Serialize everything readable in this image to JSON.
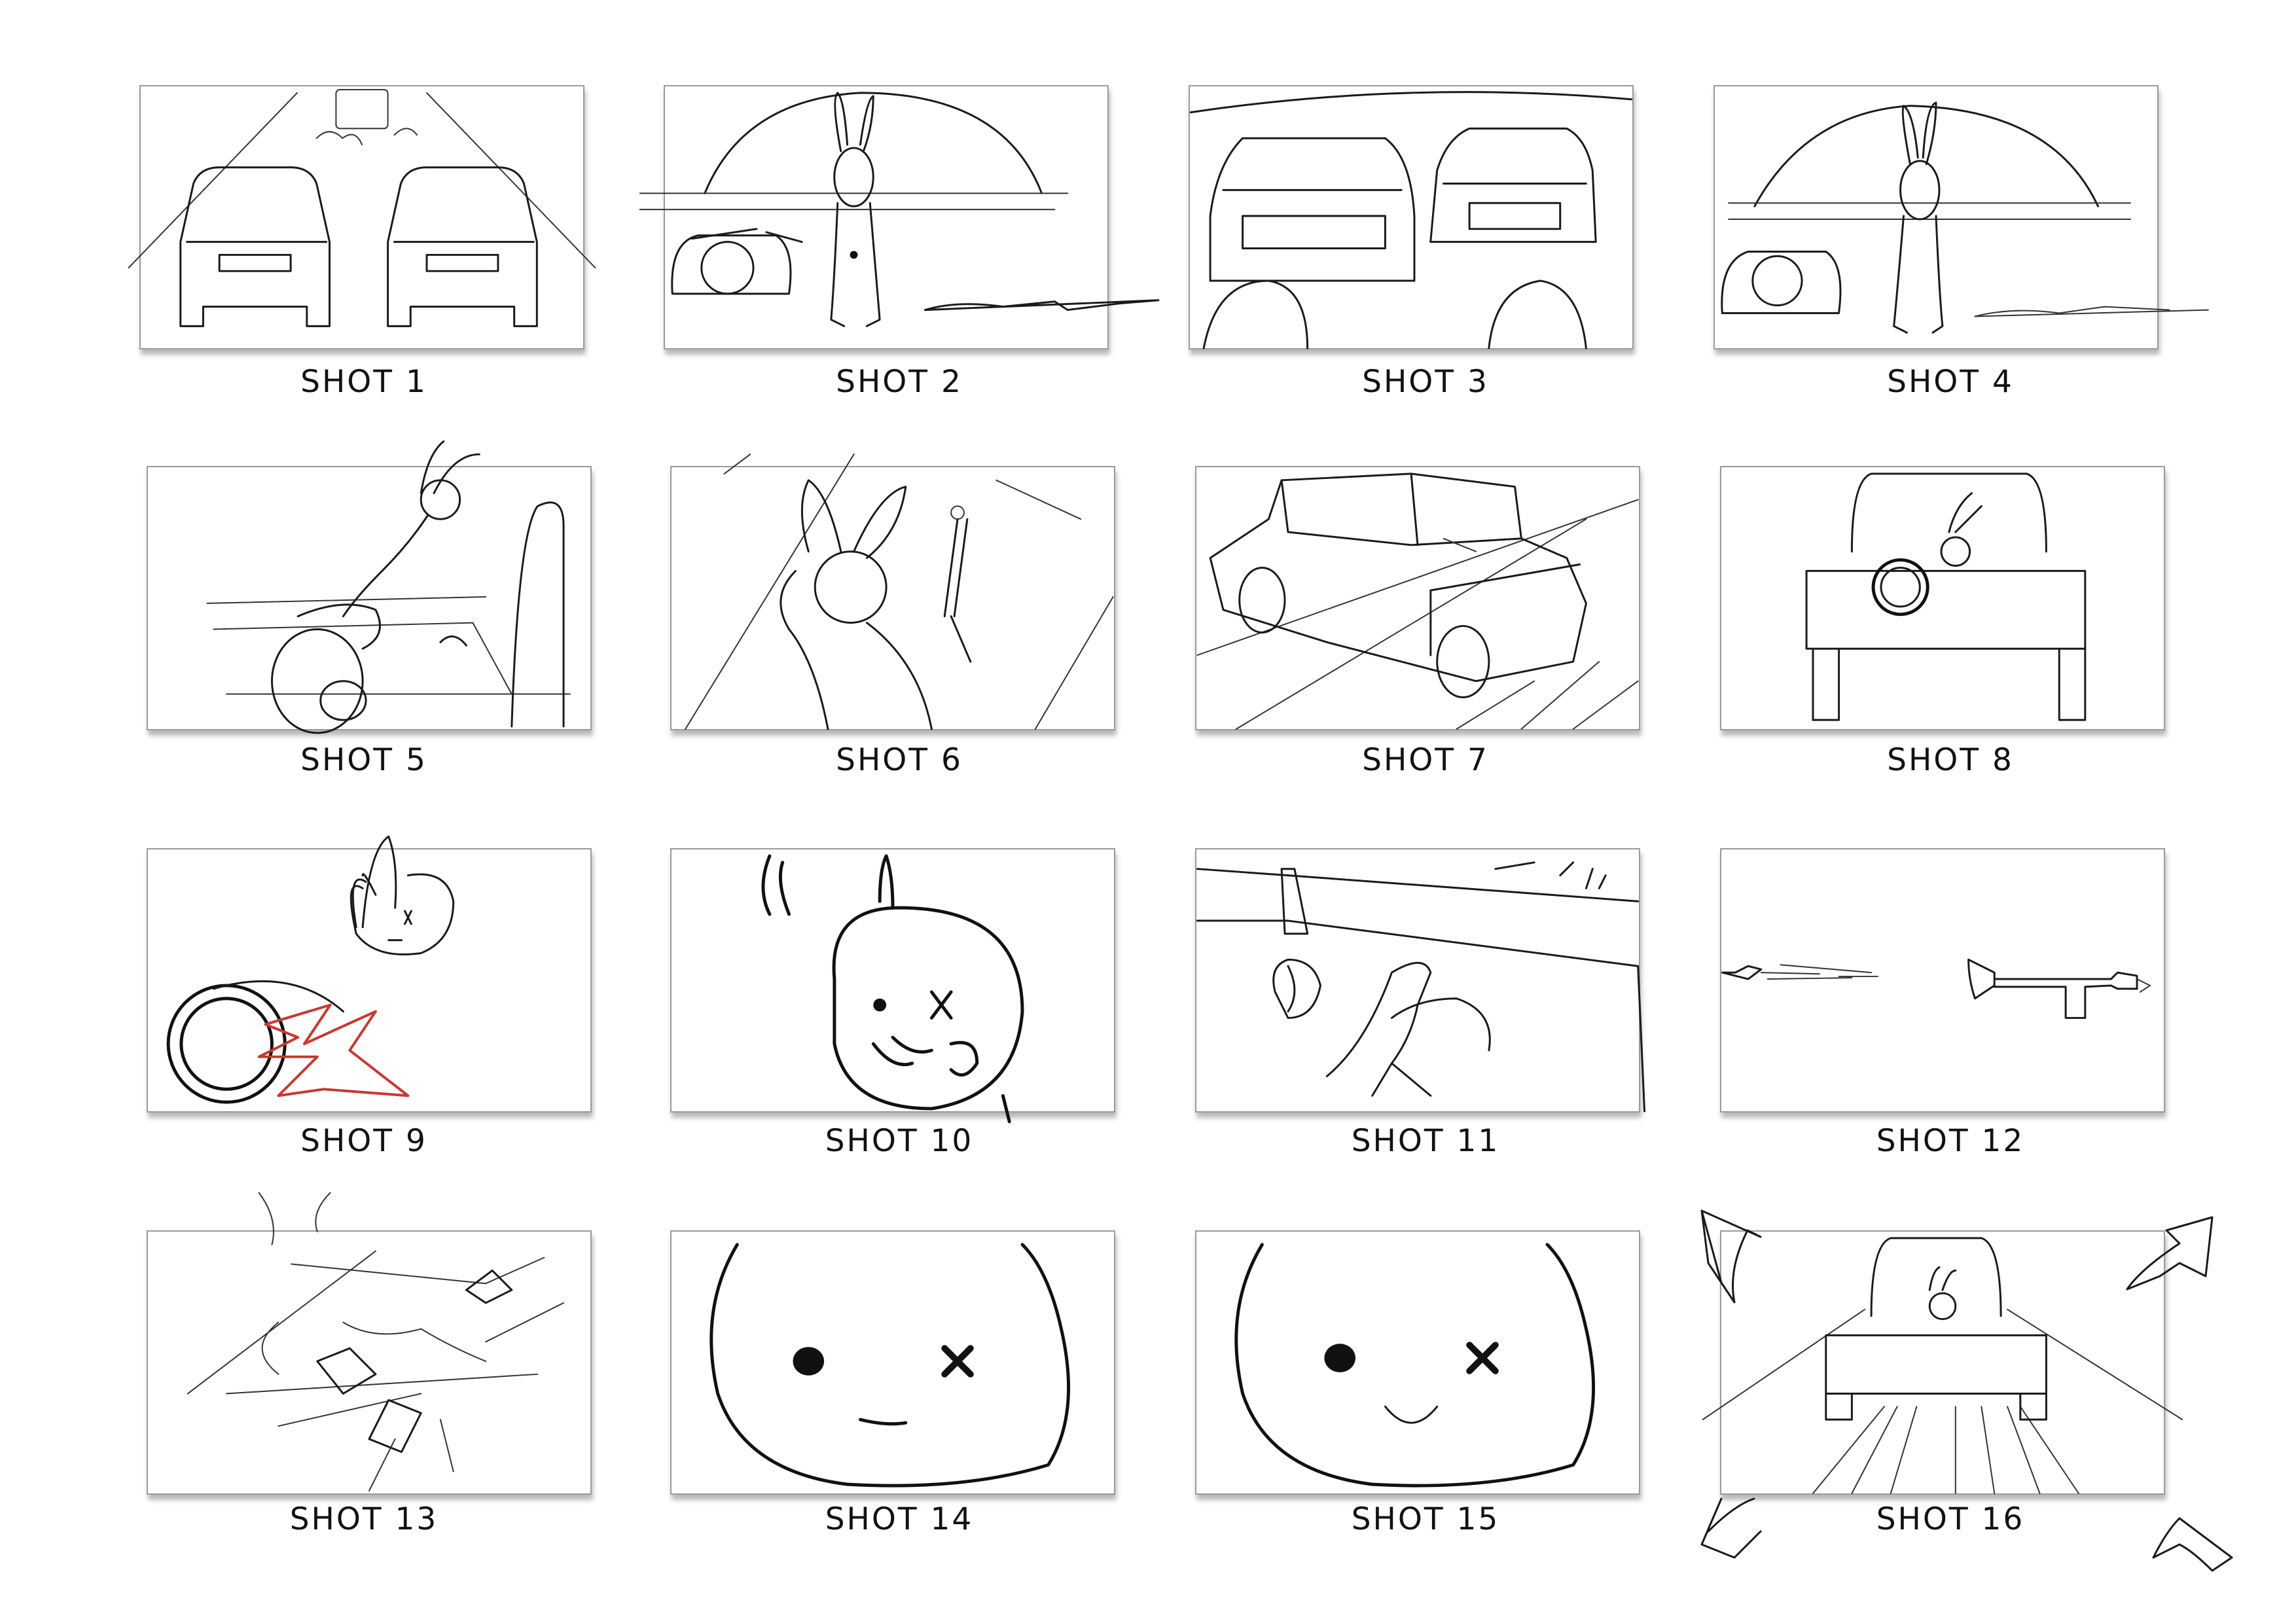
{
  "storyboard": {
    "shots": [
      {
        "label": "SHOT 1"
      },
      {
        "label": "SHOT 2"
      },
      {
        "label": "SHOT 3"
      },
      {
        "label": "SHOT 4"
      },
      {
        "label": "SHOT 5"
      },
      {
        "label": "SHOT 6"
      },
      {
        "label": "SHOT 7"
      },
      {
        "label": "SHOT 8"
      },
      {
        "label": "SHOT 9"
      },
      {
        "label": "SHOT 10"
      },
      {
        "label": "SHOT 11"
      },
      {
        "label": "SHOT 12"
      },
      {
        "label": "SHOT 13"
      },
      {
        "label": "SHOT 14"
      },
      {
        "label": "SHOT 15"
      },
      {
        "label": "SHOT 16"
      }
    ],
    "colors": {
      "sketch_line": "#1a1a1a",
      "accent_red": "#c8382f",
      "frame_border": "#9a9a9a"
    }
  }
}
